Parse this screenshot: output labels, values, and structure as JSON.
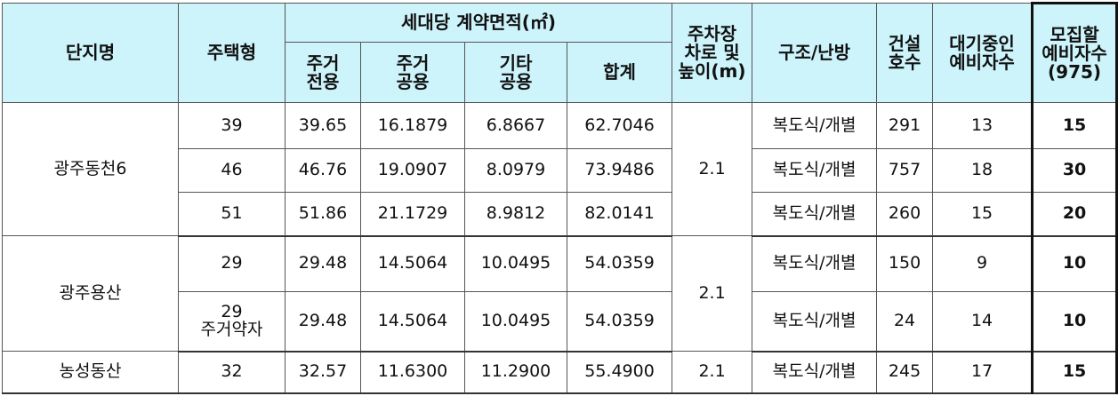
{
  "table": {
    "header": {
      "complex": "단지명",
      "type": "주택형",
      "area": "세대당 계약면적(㎡)",
      "area_cols": [
        "주거\n전용",
        "주거\n공용",
        "기타\n공용",
        "합계"
      ],
      "parking": "주차장\n차로 및\n높이(m)",
      "structure": "구조/난방",
      "units": "건설\n호수",
      "waiting": "대기중인\n예비자수",
      "recruit": "모집할\n예비자수\n(975)"
    },
    "groups": [
      {
        "name": "광주동천6",
        "parking": "2.1",
        "rows": [
          {
            "type": "39",
            "area": [
              "39.65",
              "16.1879",
              "6.8667",
              "62.7046"
            ],
            "structure": "복도식/개별",
            "units": "291",
            "waiting": "13",
            "recruit": "15"
          },
          {
            "type": "46",
            "area": [
              "46.76",
              "19.0907",
              "8.0979",
              "73.9486"
            ],
            "structure": "복도식/개별",
            "units": "757",
            "waiting": "18",
            "recruit": "30"
          },
          {
            "type": "51",
            "area": [
              "51.86",
              "21.1729",
              "8.9812",
              "82.0141"
            ],
            "structure": "복도식/개별",
            "units": "260",
            "waiting": "15",
            "recruit": "20"
          }
        ]
      },
      {
        "name": "광주용산",
        "parking": "2.1",
        "rows": [
          {
            "type": "29",
            "area": [
              "29.48",
              "14.5064",
              "10.0495",
              "54.0359"
            ],
            "structure": "복도식/개별",
            "units": "150",
            "waiting": "9",
            "recruit": "10"
          },
          {
            "type": "29\n주거약자",
            "area": [
              "29.48",
              "14.5064",
              "10.0495",
              "54.0359"
            ],
            "structure": "복도식/개별",
            "units": "24",
            "waiting": "14",
            "recruit": "10"
          }
        ]
      },
      {
        "name": "농성동산",
        "parking": "2.1",
        "rows": [
          {
            "type": "32",
            "area": [
              "32.57",
              "11.6300",
              "11.2900",
              "55.4900"
            ],
            "structure": "복도식/개별",
            "units": "245",
            "waiting": "17",
            "recruit": "15"
          }
        ]
      }
    ]
  }
}
